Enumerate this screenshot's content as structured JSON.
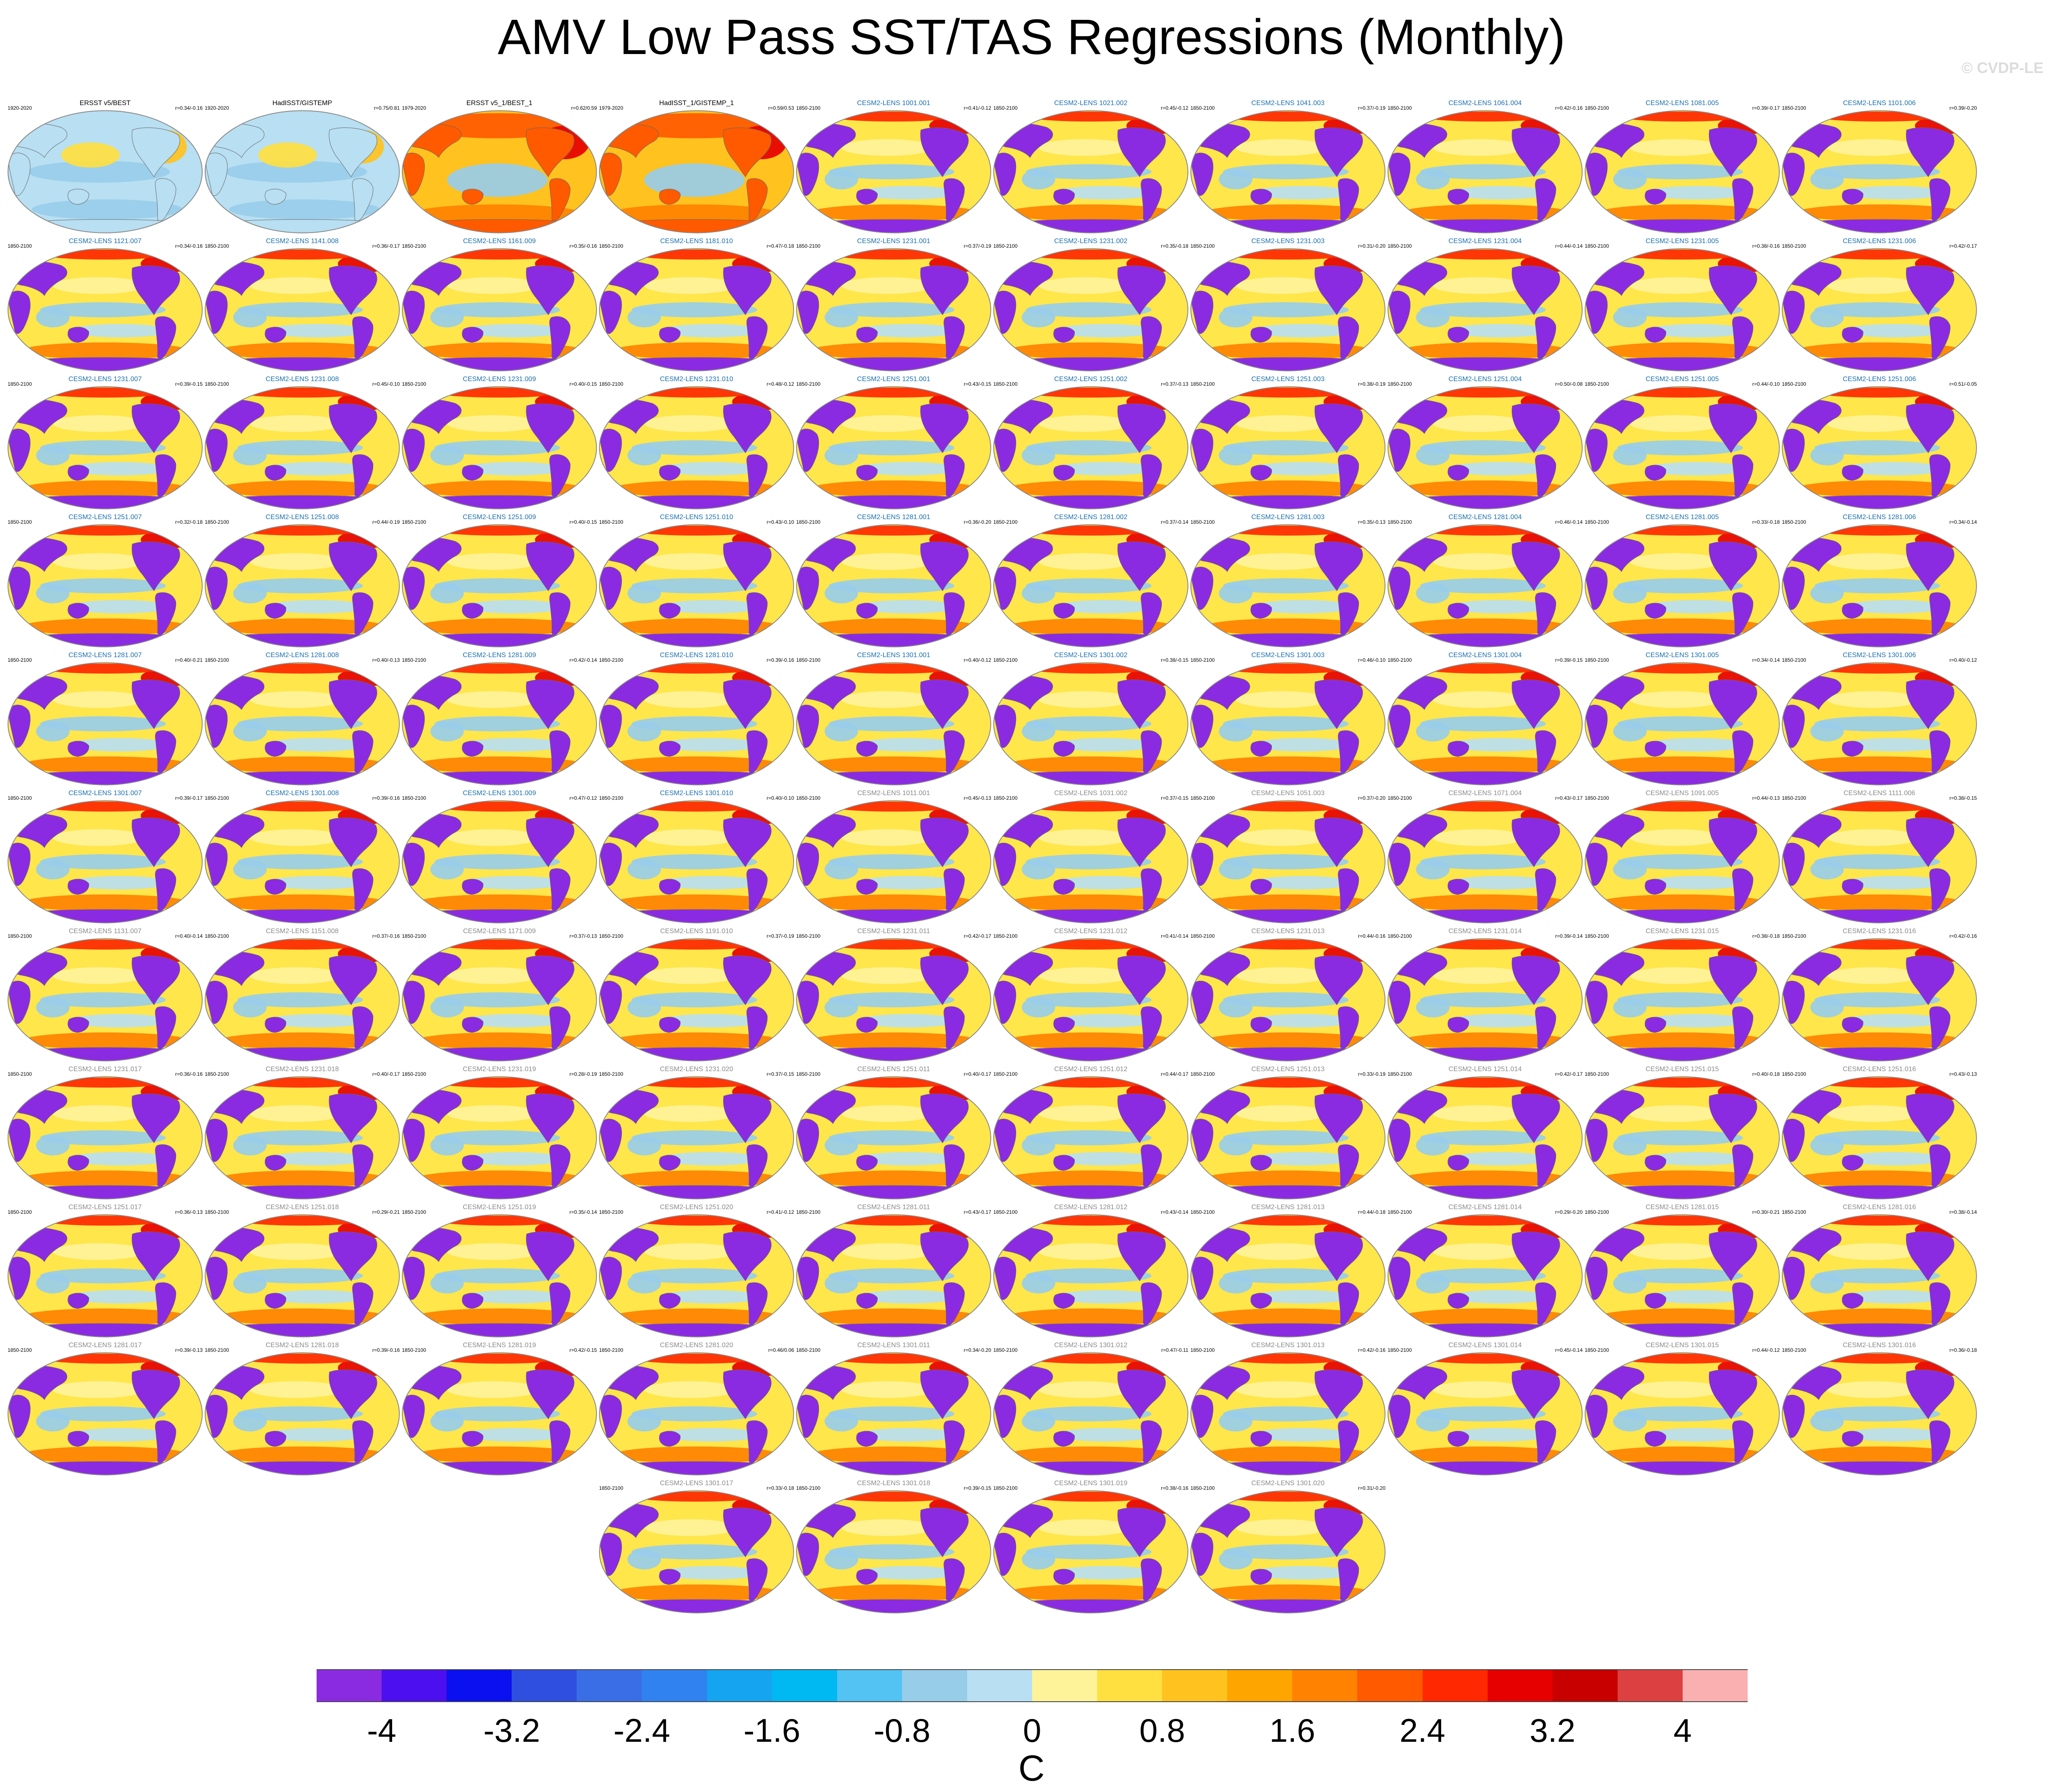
{
  "title": "AMV Low Pass SST/TAS Regressions (Monthly)",
  "watermark": "© CVDP-LE",
  "colorbar": {
    "colors": [
      "#8a2be2",
      "#4b0ff0",
      "#0a10f0",
      "#2f4fe0",
      "#3a6ee6",
      "#2f82f0",
      "#14a4f0",
      "#00b8f2",
      "#52c3f2",
      "#98cdea",
      "#b8dff2",
      "#fff39a",
      "#ffe040",
      "#ffc21e",
      "#ffa500",
      "#ff8200",
      "#ff5a00",
      "#ff2800",
      "#e60000",
      "#c80000",
      "#dc4040",
      "#fab0b0"
    ],
    "labels": [
      "-4",
      "-3.2",
      "-2.4",
      "-1.6",
      "-0.8",
      "0",
      "0.8",
      "1.6",
      "2.4",
      "3.2",
      "4"
    ],
    "units": "C"
  },
  "panels": [
    {
      "title": "ERSST v5/BEST",
      "period": "1920-2020",
      "r": "r=0.34/-0.16",
      "kind": "obs",
      "style": "obs1"
    },
    {
      "title": "HadISST/GISTEMP",
      "period": "1920-2020",
      "r": "r=0.75/0.81",
      "kind": "obs",
      "style": "obs1"
    },
    {
      "title": "ERSST v5_1/BEST_1",
      "period": "1979-2020",
      "r": "r=0.62/0.59",
      "kind": "obs",
      "style": "obs2"
    },
    {
      "title": "HadISST_1/GISTEMP_1",
      "period": "1979-2020",
      "r": "r=0.59/0.53",
      "kind": "obs",
      "style": "obs2"
    },
    {
      "title": "CESM2-LENS 1001.001",
      "period": "1850-2100",
      "r": "r=0.41/-0.12",
      "kind": "blue",
      "style": "model"
    },
    {
      "title": "CESM2-LENS 1021.002",
      "period": "1850-2100",
      "r": "r=0.45/-0.12",
      "kind": "blue",
      "style": "model"
    },
    {
      "title": "CESM2-LENS 1041.003",
      "period": "1850-2100",
      "r": "r=0.37/-0.19",
      "kind": "blue",
      "style": "model"
    },
    {
      "title": "CESM2-LENS 1061.004",
      "period": "1850-2100",
      "r": "r=0.42/-0.16",
      "kind": "blue",
      "style": "model"
    },
    {
      "title": "CESM2-LENS 1081.005",
      "period": "1850-2100",
      "r": "r=0.39/-0.17",
      "kind": "blue",
      "style": "model"
    },
    {
      "title": "CESM2-LENS 1101.006",
      "period": "1850-2100",
      "r": "r=0.39/-0.20",
      "kind": "blue",
      "style": "model"
    },
    {
      "title": "CESM2-LENS 1121.007",
      "period": "1850-2100",
      "r": "r=0.34/-0.16",
      "kind": "blue",
      "style": "model"
    },
    {
      "title": "CESM2-LENS 1141.008",
      "period": "1850-2100",
      "r": "r=0.36/-0.17",
      "kind": "blue",
      "style": "model"
    },
    {
      "title": "CESM2-LENS 1161.009",
      "period": "1850-2100",
      "r": "r=0.35/-0.16",
      "kind": "blue",
      "style": "model"
    },
    {
      "title": "CESM2-LENS 1181.010",
      "period": "1850-2100",
      "r": "r=0.47/-0.18",
      "kind": "blue",
      "style": "model"
    },
    {
      "title": "CESM2-LENS 1231.001",
      "period": "1850-2100",
      "r": "r=0.37/-0.19",
      "kind": "blue",
      "style": "model"
    },
    {
      "title": "CESM2-LENS 1231.002",
      "period": "1850-2100",
      "r": "r=0.35/-0.18",
      "kind": "blue",
      "style": "model"
    },
    {
      "title": "CESM2-LENS 1231.003",
      "period": "1850-2100",
      "r": "r=0.31/-0.20",
      "kind": "blue",
      "style": "model"
    },
    {
      "title": "CESM2-LENS 1231.004",
      "period": "1850-2100",
      "r": "r=0.44/-0.14",
      "kind": "blue",
      "style": "model"
    },
    {
      "title": "CESM2-LENS 1231.005",
      "period": "1850-2100",
      "r": "r=0.38/-0.16",
      "kind": "blue",
      "style": "model"
    },
    {
      "title": "CESM2-LENS 1231.006",
      "period": "1850-2100",
      "r": "r=0.42/-0.17",
      "kind": "blue",
      "style": "model"
    },
    {
      "title": "CESM2-LENS 1231.007",
      "period": "1850-2100",
      "r": "r=0.39/-0.15",
      "kind": "blue",
      "style": "model"
    },
    {
      "title": "CESM2-LENS 1231.008",
      "period": "1850-2100",
      "r": "r=0.45/-0.10",
      "kind": "blue",
      "style": "model"
    },
    {
      "title": "CESM2-LENS 1231.009",
      "period": "1850-2100",
      "r": "r=0.40/-0.15",
      "kind": "blue",
      "style": "model"
    },
    {
      "title": "CESM2-LENS 1231.010",
      "period": "1850-2100",
      "r": "r=0.48/-0.12",
      "kind": "blue",
      "style": "model"
    },
    {
      "title": "CESM2-LENS 1251.001",
      "period": "1850-2100",
      "r": "r=0.43/-0.15",
      "kind": "blue",
      "style": "model"
    },
    {
      "title": "CESM2-LENS 1251.002",
      "period": "1850-2100",
      "r": "r=0.37/-0.13",
      "kind": "blue",
      "style": "model"
    },
    {
      "title": "CESM2-LENS 1251.003",
      "period": "1850-2100",
      "r": "r=0.38/-0.19",
      "kind": "blue",
      "style": "model"
    },
    {
      "title": "CESM2-LENS 1251.004",
      "period": "1850-2100",
      "r": "r=0.50/-0.08",
      "kind": "blue",
      "style": "model"
    },
    {
      "title": "CESM2-LENS 1251.005",
      "period": "1850-2100",
      "r": "r=0.44/-0.10",
      "kind": "blue",
      "style": "model"
    },
    {
      "title": "CESM2-LENS 1251.006",
      "period": "1850-2100",
      "r": "r=0.51/-0.05",
      "kind": "blue",
      "style": "model"
    },
    {
      "title": "CESM2-LENS 1251.007",
      "period": "1850-2100",
      "r": "r=0.32/-0.18",
      "kind": "blue",
      "style": "model"
    },
    {
      "title": "CESM2-LENS 1251.008",
      "period": "1850-2100",
      "r": "r=0.44/-0.19",
      "kind": "blue",
      "style": "model"
    },
    {
      "title": "CESM2-LENS 1251.009",
      "period": "1850-2100",
      "r": "r=0.40/-0.15",
      "kind": "blue",
      "style": "model"
    },
    {
      "title": "CESM2-LENS 1251.010",
      "period": "1850-2100",
      "r": "r=0.43/-0.10",
      "kind": "blue",
      "style": "model"
    },
    {
      "title": "CESM2-LENS 1281.001",
      "period": "1850-2100",
      "r": "r=0.36/-0.20",
      "kind": "blue",
      "style": "model"
    },
    {
      "title": "CESM2-LENS 1281.002",
      "period": "1850-2100",
      "r": "r=0.37/-0.14",
      "kind": "blue",
      "style": "model"
    },
    {
      "title": "CESM2-LENS 1281.003",
      "period": "1850-2100",
      "r": "r=0.35/-0.13",
      "kind": "blue",
      "style": "model"
    },
    {
      "title": "CESM2-LENS 1281.004",
      "period": "1850-2100",
      "r": "r=0.46/-0.14",
      "kind": "blue",
      "style": "model"
    },
    {
      "title": "CESM2-LENS 1281.005",
      "period": "1850-2100",
      "r": "r=0.33/-0.18",
      "kind": "blue",
      "style": "model"
    },
    {
      "title": "CESM2-LENS 1281.006",
      "period": "1850-2100",
      "r": "r=0.34/-0.14",
      "kind": "blue",
      "style": "model"
    },
    {
      "title": "CESM2-LENS 1281.007",
      "period": "1850-2100",
      "r": "r=0.40/-0.21",
      "kind": "blue",
      "style": "model"
    },
    {
      "title": "CESM2-LENS 1281.008",
      "period": "1850-2100",
      "r": "r=0.40/-0.13",
      "kind": "blue",
      "style": "model"
    },
    {
      "title": "CESM2-LENS 1281.009",
      "period": "1850-2100",
      "r": "r=0.42/-0.14",
      "kind": "blue",
      "style": "model"
    },
    {
      "title": "CESM2-LENS 1281.010",
      "period": "1850-2100",
      "r": "r=0.39/-0.16",
      "kind": "blue",
      "style": "model"
    },
    {
      "title": "CESM2-LENS 1301.001",
      "period": "1850-2100",
      "r": "r=0.40/-0.12",
      "kind": "blue",
      "style": "model"
    },
    {
      "title": "CESM2-LENS 1301.002",
      "period": "1850-2100",
      "r": "r=0.38/-0.15",
      "kind": "blue",
      "style": "model"
    },
    {
      "title": "CESM2-LENS 1301.003",
      "period": "1850-2100",
      "r": "r=0.46/-0.10",
      "kind": "blue",
      "style": "model"
    },
    {
      "title": "CESM2-LENS 1301.004",
      "period": "1850-2100",
      "r": "r=0.39/-0.15",
      "kind": "blue",
      "style": "model"
    },
    {
      "title": "CESM2-LENS 1301.005",
      "period": "1850-2100",
      "r": "r=0.34/-0.14",
      "kind": "blue",
      "style": "model"
    },
    {
      "title": "CESM2-LENS 1301.006",
      "period": "1850-2100",
      "r": "r=0.40/-0.12",
      "kind": "blue",
      "style": "model"
    },
    {
      "title": "CESM2-LENS 1301.007",
      "period": "1850-2100",
      "r": "r=0.39/-0.17",
      "kind": "blue",
      "style": "model"
    },
    {
      "title": "CESM2-LENS 1301.008",
      "period": "1850-2100",
      "r": "r=0.39/-0.16",
      "kind": "blue",
      "style": "model"
    },
    {
      "title": "CESM2-LENS 1301.009",
      "period": "1850-2100",
      "r": "r=0.47/-0.12",
      "kind": "blue",
      "style": "model"
    },
    {
      "title": "CESM2-LENS 1301.010",
      "period": "1850-2100",
      "r": "r=0.40/-0.10",
      "kind": "blue",
      "style": "model"
    },
    {
      "title": "CESM2-LENS 1011.001",
      "period": "1850-2100",
      "r": "r=0.45/-0.13",
      "kind": "grey",
      "style": "model"
    },
    {
      "title": "CESM2-LENS 1031.002",
      "period": "1850-2100",
      "r": "r=0.37/-0.15",
      "kind": "grey",
      "style": "model"
    },
    {
      "title": "CESM2-LENS 1051.003",
      "period": "1850-2100",
      "r": "r=0.37/-0.20",
      "kind": "grey",
      "style": "model"
    },
    {
      "title": "CESM2-LENS 1071.004",
      "period": "1850-2100",
      "r": "r=0.43/-0.17",
      "kind": "grey",
      "style": "model"
    },
    {
      "title": "CESM2-LENS 1091.005",
      "period": "1850-2100",
      "r": "r=0.44/-0.13",
      "kind": "grey",
      "style": "model"
    },
    {
      "title": "CESM2-LENS 1111.006",
      "period": "1850-2100",
      "r": "r=0.38/-0.15",
      "kind": "grey",
      "style": "model"
    },
    {
      "title": "CESM2-LENS 1131.007",
      "period": "1850-2100",
      "r": "r=0.40/-0.14",
      "kind": "grey",
      "style": "model"
    },
    {
      "title": "CESM2-LENS 1151.008",
      "period": "1850-2100",
      "r": "r=0.37/-0.16",
      "kind": "grey",
      "style": "model"
    },
    {
      "title": "CESM2-LENS 1171.009",
      "period": "1850-2100",
      "r": "r=0.37/-0.13",
      "kind": "grey",
      "style": "model"
    },
    {
      "title": "CESM2-LENS 1191.010",
      "period": "1850-2100",
      "r": "r=0.37/-0.19",
      "kind": "grey",
      "style": "model"
    },
    {
      "title": "CESM2-LENS 1231.011",
      "period": "1850-2100",
      "r": "r=0.42/-0.17",
      "kind": "grey",
      "style": "model"
    },
    {
      "title": "CESM2-LENS 1231.012",
      "period": "1850-2100",
      "r": "r=0.41/-0.14",
      "kind": "grey",
      "style": "model"
    },
    {
      "title": "CESM2-LENS 1231.013",
      "period": "1850-2100",
      "r": "r=0.44/-0.16",
      "kind": "grey",
      "style": "model"
    },
    {
      "title": "CESM2-LENS 1231.014",
      "period": "1850-2100",
      "r": "r=0.39/-0.14",
      "kind": "grey",
      "style": "model"
    },
    {
      "title": "CESM2-LENS 1231.015",
      "period": "1850-2100",
      "r": "r=0.38/-0.18",
      "kind": "grey",
      "style": "model"
    },
    {
      "title": "CESM2-LENS 1231.016",
      "period": "1850-2100",
      "r": "r=0.42/-0.16",
      "kind": "grey",
      "style": "model"
    },
    {
      "title": "CESM2-LENS 1231.017",
      "period": "1850-2100",
      "r": "r=0.36/-0.16",
      "kind": "grey",
      "style": "model"
    },
    {
      "title": "CESM2-LENS 1231.018",
      "period": "1850-2100",
      "r": "r=0.40/-0.17",
      "kind": "grey",
      "style": "model"
    },
    {
      "title": "CESM2-LENS 1231.019",
      "period": "1850-2100",
      "r": "r=0.28/-0.19",
      "kind": "grey",
      "style": "model"
    },
    {
      "title": "CESM2-LENS 1231.020",
      "period": "1850-2100",
      "r": "r=0.37/-0.15",
      "kind": "grey",
      "style": "model"
    },
    {
      "title": "CESM2-LENS 1251.011",
      "period": "1850-2100",
      "r": "r=0.40/-0.17",
      "kind": "grey",
      "style": "model"
    },
    {
      "title": "CESM2-LENS 1251.012",
      "period": "1850-2100",
      "r": "r=0.44/-0.17",
      "kind": "grey",
      "style": "model"
    },
    {
      "title": "CESM2-LENS 1251.013",
      "period": "1850-2100",
      "r": "r=0.33/-0.19",
      "kind": "grey",
      "style": "model"
    },
    {
      "title": "CESM2-LENS 1251.014",
      "period": "1850-2100",
      "r": "r=0.42/-0.17",
      "kind": "grey",
      "style": "model"
    },
    {
      "title": "CESM2-LENS 1251.015",
      "period": "1850-2100",
      "r": "r=0.40/-0.18",
      "kind": "grey",
      "style": "model"
    },
    {
      "title": "CESM2-LENS 1251.016",
      "period": "1850-2100",
      "r": "r=0.43/-0.13",
      "kind": "grey",
      "style": "model"
    },
    {
      "title": "CESM2-LENS 1251.017",
      "period": "1850-2100",
      "r": "r=0.36/-0.13",
      "kind": "grey",
      "style": "model"
    },
    {
      "title": "CESM2-LENS 1251.018",
      "period": "1850-2100",
      "r": "r=0.29/-0.21",
      "kind": "grey",
      "style": "model"
    },
    {
      "title": "CESM2-LENS 1251.019",
      "period": "1850-2100",
      "r": "r=0.35/-0.14",
      "kind": "grey",
      "style": "model"
    },
    {
      "title": "CESM2-LENS 1251.020",
      "period": "1850-2100",
      "r": "r=0.41/-0.12",
      "kind": "grey",
      "style": "model"
    },
    {
      "title": "CESM2-LENS 1281.011",
      "period": "1850-2100",
      "r": "r=0.43/-0.17",
      "kind": "grey",
      "style": "model"
    },
    {
      "title": "CESM2-LENS 1281.012",
      "period": "1850-2100",
      "r": "r=0.43/-0.14",
      "kind": "grey",
      "style": "model"
    },
    {
      "title": "CESM2-LENS 1281.013",
      "period": "1850-2100",
      "r": "r=0.44/-0.18",
      "kind": "grey",
      "style": "model"
    },
    {
      "title": "CESM2-LENS 1281.014",
      "period": "1850-2100",
      "r": "r=0.29/-0.20",
      "kind": "grey",
      "style": "model"
    },
    {
      "title": "CESM2-LENS 1281.015",
      "period": "1850-2100",
      "r": "r=0.30/-0.21",
      "kind": "grey",
      "style": "model"
    },
    {
      "title": "CESM2-LENS 1281.016",
      "period": "1850-2100",
      "r": "r=0.38/-0.14",
      "kind": "grey",
      "style": "model"
    },
    {
      "title": "CESM2-LENS 1281.017",
      "period": "1850-2100",
      "r": "r=0.39/-0.13",
      "kind": "grey",
      "style": "model"
    },
    {
      "title": "CESM2-LENS 1281.018",
      "period": "1850-2100",
      "r": "r=0.39/-0.16",
      "kind": "grey",
      "style": "model"
    },
    {
      "title": "CESM2-LENS 1281.019",
      "period": "1850-2100",
      "r": "r=0.42/-0.15",
      "kind": "grey",
      "style": "model"
    },
    {
      "title": "CESM2-LENS 1281.020",
      "period": "1850-2100",
      "r": "r=0.46/0.06",
      "kind": "grey",
      "style": "model"
    },
    {
      "title": "CESM2-LENS 1301.011",
      "period": "1850-2100",
      "r": "r=0.34/-0.20",
      "kind": "grey",
      "style": "model"
    },
    {
      "title": "CESM2-LENS 1301.012",
      "period": "1850-2100",
      "r": "r=0.47/-0.11",
      "kind": "grey",
      "style": "model"
    },
    {
      "title": "CESM2-LENS 1301.013",
      "period": "1850-2100",
      "r": "r=0.42/-0.16",
      "kind": "grey",
      "style": "model"
    },
    {
      "title": "CESM2-LENS 1301.014",
      "period": "1850-2100",
      "r": "r=0.45/-0.14",
      "kind": "grey",
      "style": "model"
    },
    {
      "title": "CESM2-LENS 1301.015",
      "period": "1850-2100",
      "r": "r=0.44/-0.12",
      "kind": "grey",
      "style": "model"
    },
    {
      "title": "CESM2-LENS 1301.016",
      "period": "1850-2100",
      "r": "r=0.36/-0.18",
      "kind": "grey",
      "style": "model"
    },
    {
      "title": "CESM2-LENS 1301.017",
      "period": "1850-2100",
      "r": "r=0.33/-0.18",
      "kind": "grey",
      "style": "model"
    },
    {
      "title": "CESM2-LENS 1301.018",
      "period": "1850-2100",
      "r": "r=0.39/-0.15",
      "kind": "grey",
      "style": "model"
    },
    {
      "title": "CESM2-LENS 1301.019",
      "period": "1850-2100",
      "r": "r=0.38/-0.16",
      "kind": "grey",
      "style": "model"
    },
    {
      "title": "CESM2-LENS 1301.020",
      "period": "1850-2100",
      "r": "r=0.31/-0.20",
      "kind": "grey",
      "style": "model"
    }
  ]
}
